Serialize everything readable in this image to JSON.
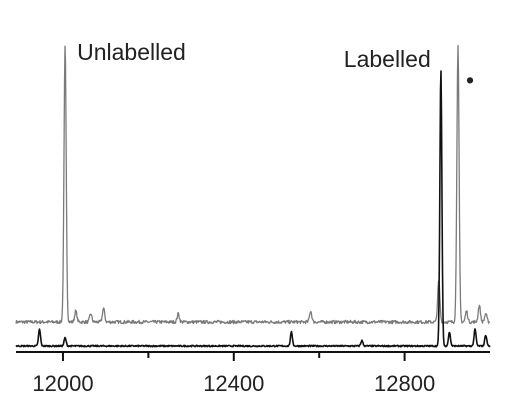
{
  "chart_data": {
    "type": "line",
    "xlim": [
      11890,
      13000
    ],
    "x_ticks": [
      12000,
      12400,
      12800
    ],
    "x_minor_ticks": [
      12200,
      12600
    ],
    "grid": false,
    "series": [
      {
        "color": "#7a7a7a",
        "baseline": 0.06,
        "peaks": [
          {
            "x": 12005,
            "y": 1.0
          },
          {
            "x": 12030,
            "y": 0.04
          },
          {
            "x": 12065,
            "y": 0.03
          },
          {
            "x": 12095,
            "y": 0.05
          },
          {
            "x": 12270,
            "y": 0.03
          },
          {
            "x": 12580,
            "y": 0.04
          },
          {
            "x": 12880,
            "y": 0.15
          },
          {
            "x": 12925,
            "y": 1.0
          },
          {
            "x": 12945,
            "y": 0.04
          },
          {
            "x": 12975,
            "y": 0.06
          },
          {
            "x": 12990,
            "y": 0.03
          }
        ]
      },
      {
        "color": "#111111",
        "baseline": 0.0,
        "peaks": [
          {
            "x": 11945,
            "y": 0.06
          },
          {
            "x": 12005,
            "y": 0.03
          },
          {
            "x": 12535,
            "y": 0.05
          },
          {
            "x": 12700,
            "y": 0.02
          },
          {
            "x": 12885,
            "y": 1.0
          },
          {
            "x": 12905,
            "y": 0.05
          },
          {
            "x": 12965,
            "y": 0.06
          },
          {
            "x": 12990,
            "y": 0.04
          }
        ]
      }
    ],
    "annotations": [
      {
        "text": "Unlabelled",
        "x": 12005,
        "series": 0
      },
      {
        "text": "Labelled",
        "x": 12880,
        "series": 1
      },
      {
        "text": "•",
        "x": 12925,
        "series": 0
      }
    ]
  }
}
